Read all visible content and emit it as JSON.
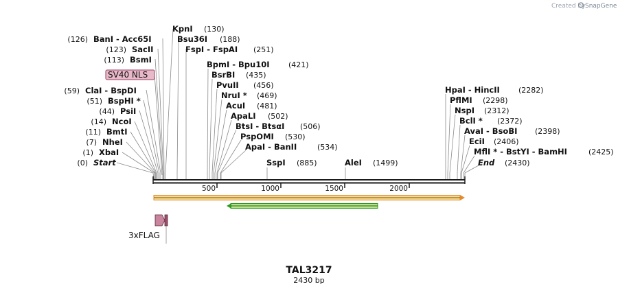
{
  "credit": {
    "prefix": "Created by",
    "brand": "SnapGene"
  },
  "plasmid": {
    "name": "TAL3217",
    "length": "2430 bp"
  },
  "colors": {
    "backbone": "#1a1a1a",
    "orf_fill": "#f5d98c",
    "orf_border": "#e48a2d",
    "orf2_fill": "#b9e38a",
    "orf2_border": "#2f9a22",
    "feature": "#c9859e",
    "nls_fill": "#e8b9c9",
    "nls_border": "#9a3d62",
    "connector": "#8a8a8a"
  },
  "ruler": {
    "ticks": [
      "500",
      "1000",
      "1500",
      "2000"
    ]
  },
  "nls": {
    "label": "SV40 NLS"
  },
  "flag": {
    "label": "3xFLAG"
  },
  "enzymes": [
    {
      "name": "Start",
      "pos": "(0)",
      "italic": true
    },
    {
      "name": "XbaI",
      "pos": "(1)"
    },
    {
      "name": "NheI",
      "pos": "(7)"
    },
    {
      "name": "BmtI",
      "pos": "(11)"
    },
    {
      "name": "NcoI",
      "pos": "(14)"
    },
    {
      "name": "PsiI",
      "pos": "(44)"
    },
    {
      "name": "BspHI *",
      "pos": "(51)"
    },
    {
      "name": "ClaI - BspDI",
      "pos": "(59)"
    },
    {
      "name": "BsmI",
      "pos": "(113)"
    },
    {
      "name": "SacII",
      "pos": "(123)"
    },
    {
      "name": "BanI - Acc65I",
      "pos": "(126)"
    },
    {
      "name": "KpnI",
      "pos": "(130)"
    },
    {
      "name": "Bsu36I",
      "pos": "(188)"
    },
    {
      "name": "FspI - FspAI",
      "pos": "(251)"
    },
    {
      "name": "BpmI - Bpu10I",
      "pos": "(421)"
    },
    {
      "name": "BsrBI",
      "pos": "(435)"
    },
    {
      "name": "PvuII",
      "pos": "(456)"
    },
    {
      "name": "NruI *",
      "pos": "(469)"
    },
    {
      "name": "AcuI",
      "pos": "(481)"
    },
    {
      "name": "ApaLI",
      "pos": "(502)"
    },
    {
      "name": "BtsI - BtsαI",
      "pos": "(506)"
    },
    {
      "name": "PspOMI",
      "pos": "(530)"
    },
    {
      "name": "ApaI - BanII",
      "pos": "(534)"
    },
    {
      "name": "SspI",
      "pos": "(885)"
    },
    {
      "name": "AleI",
      "pos": "(1499)"
    },
    {
      "name": "HpaI - HincII",
      "pos": "(2282)"
    },
    {
      "name": "PflMI",
      "pos": "(2298)"
    },
    {
      "name": "NspI",
      "pos": "(2312)"
    },
    {
      "name": "BclI *",
      "pos": "(2372)"
    },
    {
      "name": "AvaI - BsoBI",
      "pos": "(2398)"
    },
    {
      "name": "EciI",
      "pos": "(2406)"
    },
    {
      "name": "MflI * - BstYI - BamHI",
      "pos": "(2425)"
    },
    {
      "name": "End",
      "pos": "(2430)",
      "italic": true
    }
  ]
}
